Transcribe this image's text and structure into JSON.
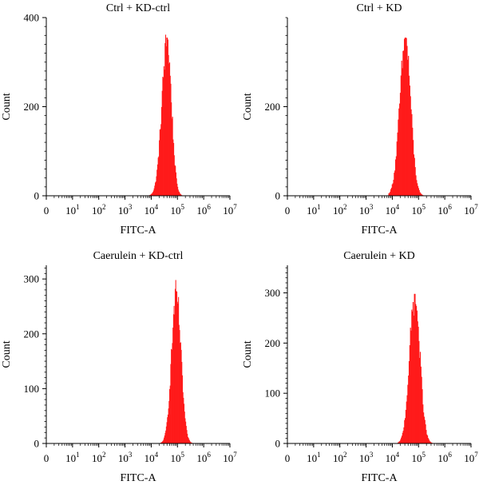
{
  "chart_data": [
    {
      "type": "histogram",
      "title": "Ctrl + KD-ctrl",
      "xlabel": "FITC-A",
      "ylabel": "Count",
      "xscale": "log (biexponential-style, with 0)",
      "xticks": [
        {
          "base": "0",
          "exp": ""
        },
        {
          "base": "10",
          "exp": "1"
        },
        {
          "base": "10",
          "exp": "2"
        },
        {
          "base": "10",
          "exp": "3"
        },
        {
          "base": "10",
          "exp": "4"
        },
        {
          "base": "10",
          "exp": "5"
        },
        {
          "base": "10",
          "exp": "6"
        },
        {
          "base": "10",
          "exp": "7"
        }
      ],
      "xlim_decades": [
        0,
        7
      ],
      "ylim": [
        0,
        400
      ],
      "yticks": [
        0,
        200,
        400
      ],
      "fill_color": "#ff1a1a",
      "peak_log10": 4.6,
      "peak_count": 355,
      "spread_left": 0.2,
      "spread_right": 0.17,
      "range_log10": [
        3.9,
        5.3
      ]
    },
    {
      "type": "histogram",
      "title": "Ctrl + KD",
      "xlabel": "FITC-A",
      "ylabel": "Count",
      "xscale": "log (biexponential-style, with 0)",
      "xticks": [
        {
          "base": "0",
          "exp": ""
        },
        {
          "base": "10",
          "exp": "1"
        },
        {
          "base": "10",
          "exp": "2"
        },
        {
          "base": "10",
          "exp": "3"
        },
        {
          "base": "10",
          "exp": "4"
        },
        {
          "base": "10",
          "exp": "5"
        },
        {
          "base": "10",
          "exp": "6"
        },
        {
          "base": "10",
          "exp": "7"
        }
      ],
      "xlim_decades": [
        0,
        7
      ],
      "ylim": [
        0,
        400
      ],
      "yticks": [
        0,
        200
      ],
      "fill_color": "#ff1a1a",
      "peak_log10": 4.5,
      "peak_count": 355,
      "spread_left": 0.22,
      "spread_right": 0.2,
      "range_log10": [
        3.85,
        5.5
      ]
    },
    {
      "type": "histogram",
      "title": "Caerulein + KD-ctrl",
      "xlabel": "FITC-A",
      "ylabel": "Count",
      "xscale": "log (biexponential-style, with 0)",
      "xticks": [
        {
          "base": "0",
          "exp": ""
        },
        {
          "base": "10",
          "exp": "1"
        },
        {
          "base": "10",
          "exp": "2"
        },
        {
          "base": "10",
          "exp": "3"
        },
        {
          "base": "10",
          "exp": "4"
        },
        {
          "base": "10",
          "exp": "5"
        },
        {
          "base": "10",
          "exp": "6"
        },
        {
          "base": "10",
          "exp": "7"
        }
      ],
      "xlim_decades": [
        0,
        7
      ],
      "ylim": [
        0,
        325
      ],
      "yticks": [
        0,
        100,
        200,
        300
      ],
      "fill_color": "#ff1a1a",
      "peak_log10": 4.95,
      "peak_count": 278,
      "spread_left": 0.18,
      "spread_right": 0.18,
      "range_log10": [
        4.35,
        5.7
      ]
    },
    {
      "type": "histogram",
      "title": "Caerulein + KD",
      "xlabel": "FITC-A",
      "ylabel": "Count",
      "xscale": "log (biexponential-style, with 0)",
      "xticks": [
        {
          "base": "0",
          "exp": ""
        },
        {
          "base": "10",
          "exp": "1"
        },
        {
          "base": "10",
          "exp": "2"
        },
        {
          "base": "10",
          "exp": "3"
        },
        {
          "base": "10",
          "exp": "4"
        },
        {
          "base": "10",
          "exp": "5"
        },
        {
          "base": "10",
          "exp": "6"
        },
        {
          "base": "10",
          "exp": "7"
        }
      ],
      "xlim_decades": [
        0,
        7
      ],
      "ylim": [
        0,
        355
      ],
      "yticks": [
        0,
        100,
        200,
        300
      ],
      "fill_color": "#ff1a1a",
      "peak_log10": 4.85,
      "peak_count": 298,
      "spread_left": 0.2,
      "spread_right": 0.2,
      "range_log10": [
        4.2,
        5.8
      ]
    }
  ]
}
